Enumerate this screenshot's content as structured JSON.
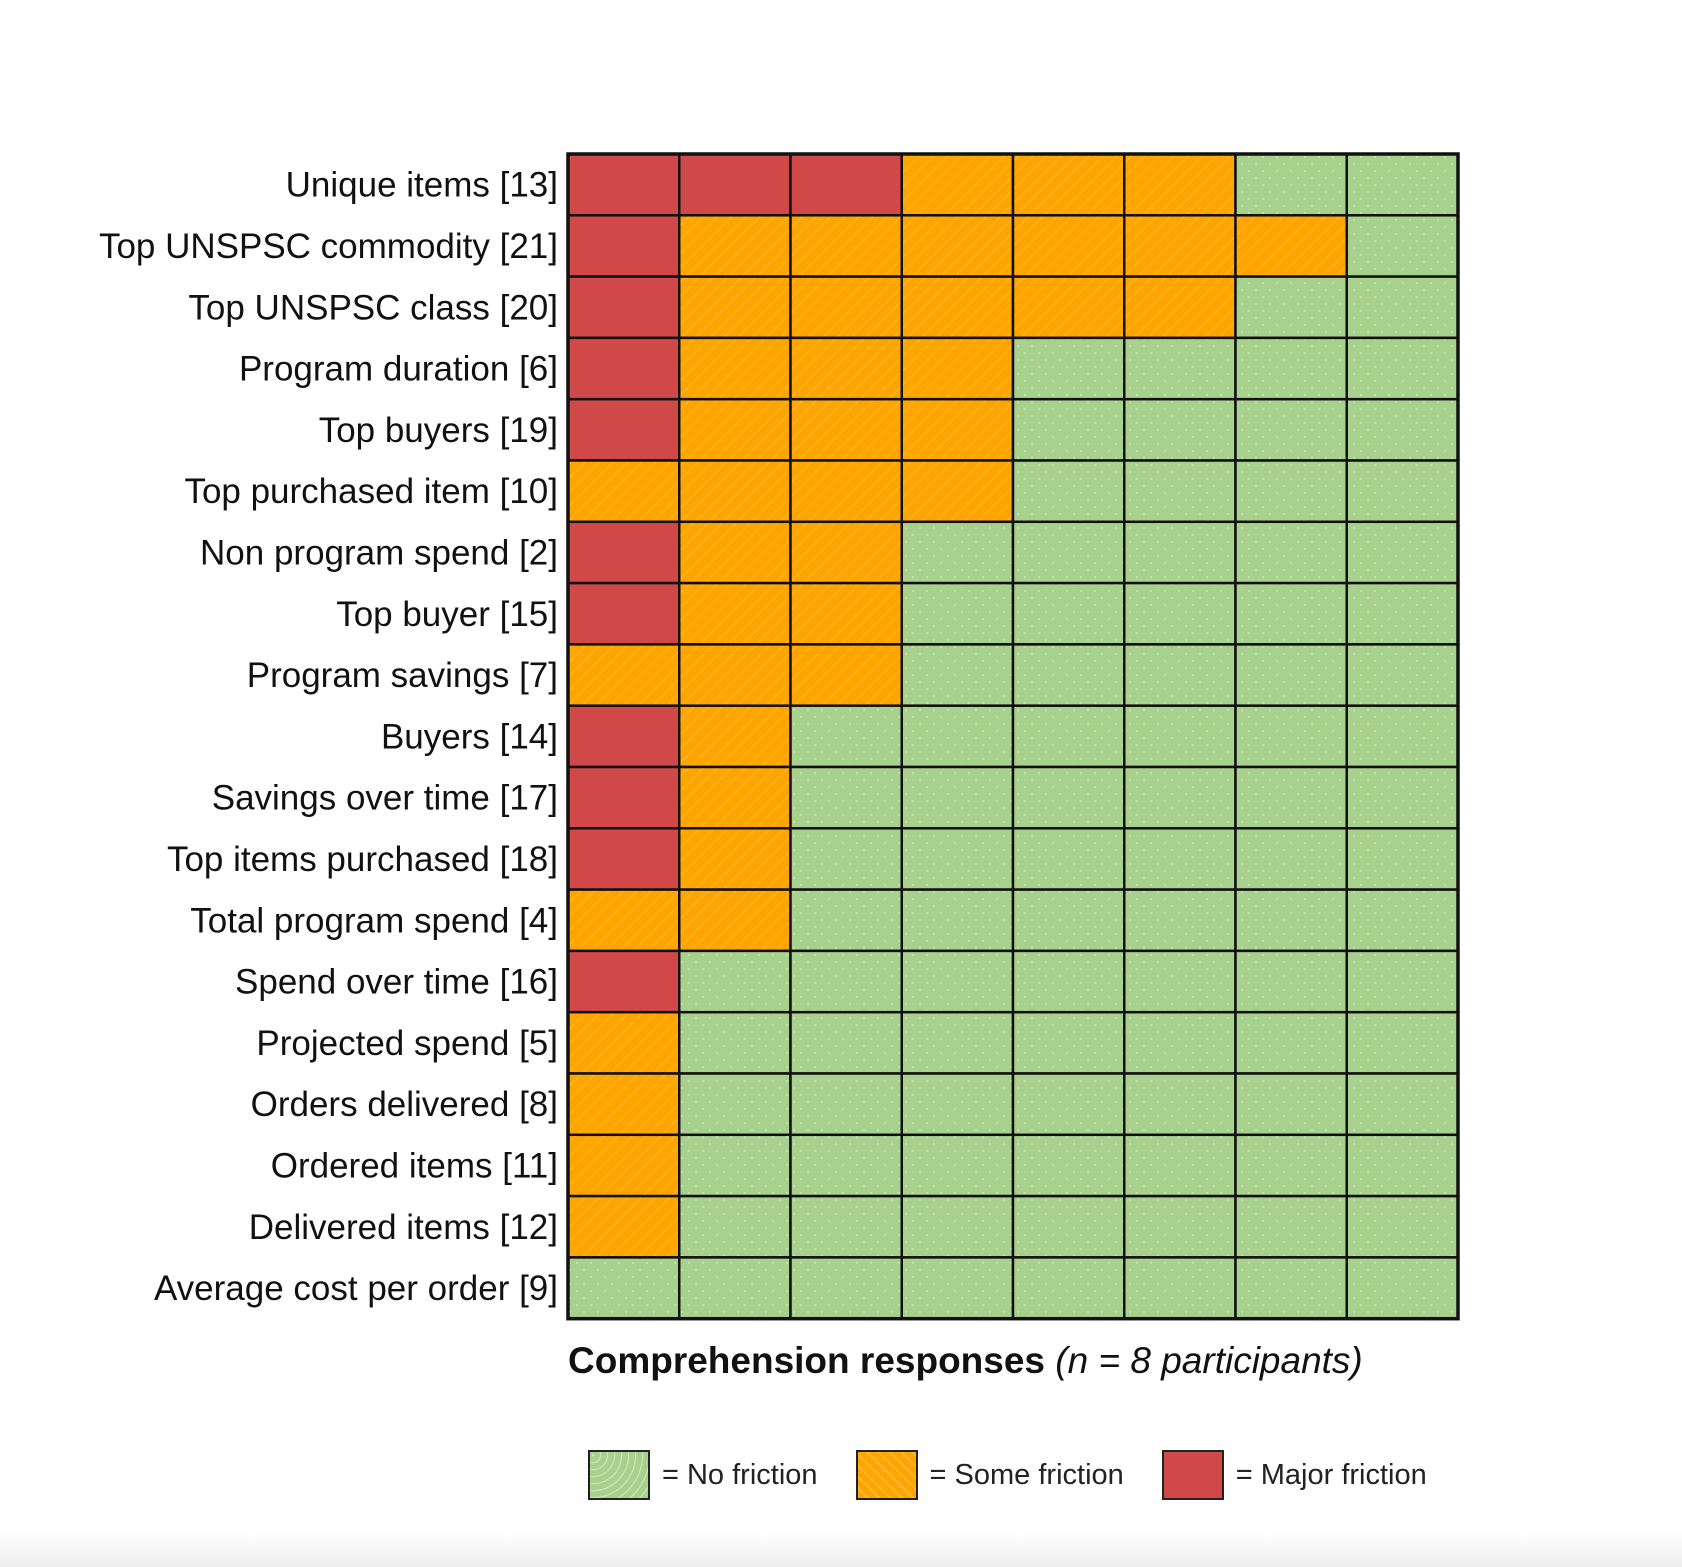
{
  "chart_data": {
    "type": "heatmap",
    "title": "",
    "xlabel_bold": "Comprehension responses",
    "xlabel_italic": "(n = 8 participants)",
    "ylabel": "",
    "rows": [
      "Unique items [13]",
      "Top UNSPSC commodity [21]",
      "Top UNSPSC class [20]",
      "Program duration [6]",
      "Top buyers [19]",
      "Top purchased item [10]",
      "Non program spend [2]",
      "Top buyer [15]",
      "Program savings [7]",
      "Buyers [14]",
      "Savings over time [17]",
      "Top items purchased [18]",
      "Total program spend [4]",
      "Spend over time [16]",
      "Projected spend [5]",
      "Orders delivered [8]",
      "Ordered items [11]",
      "Delivered items [12]",
      "Average cost per order [9]"
    ],
    "columns": 8,
    "levels": [
      "none",
      "some",
      "major"
    ],
    "values": [
      [
        "major",
        "major",
        "major",
        "some",
        "some",
        "some",
        "none",
        "none"
      ],
      [
        "major",
        "some",
        "some",
        "some",
        "some",
        "some",
        "some",
        "none"
      ],
      [
        "major",
        "some",
        "some",
        "some",
        "some",
        "some",
        "none",
        "none"
      ],
      [
        "major",
        "some",
        "some",
        "some",
        "none",
        "none",
        "none",
        "none"
      ],
      [
        "major",
        "some",
        "some",
        "some",
        "none",
        "none",
        "none",
        "none"
      ],
      [
        "some",
        "some",
        "some",
        "some",
        "none",
        "none",
        "none",
        "none"
      ],
      [
        "major",
        "some",
        "some",
        "none",
        "none",
        "none",
        "none",
        "none"
      ],
      [
        "major",
        "some",
        "some",
        "none",
        "none",
        "none",
        "none",
        "none"
      ],
      [
        "some",
        "some",
        "some",
        "none",
        "none",
        "none",
        "none",
        "none"
      ],
      [
        "major",
        "some",
        "none",
        "none",
        "none",
        "none",
        "none",
        "none"
      ],
      [
        "major",
        "some",
        "none",
        "none",
        "none",
        "none",
        "none",
        "none"
      ],
      [
        "major",
        "some",
        "none",
        "none",
        "none",
        "none",
        "none",
        "none"
      ],
      [
        "some",
        "some",
        "none",
        "none",
        "none",
        "none",
        "none",
        "none"
      ],
      [
        "major",
        "none",
        "none",
        "none",
        "none",
        "none",
        "none",
        "none"
      ],
      [
        "some",
        "none",
        "none",
        "none",
        "none",
        "none",
        "none",
        "none"
      ],
      [
        "some",
        "none",
        "none",
        "none",
        "none",
        "none",
        "none",
        "none"
      ],
      [
        "some",
        "none",
        "none",
        "none",
        "none",
        "none",
        "none",
        "none"
      ],
      [
        "some",
        "none",
        "none",
        "none",
        "none",
        "none",
        "none",
        "none"
      ],
      [
        "none",
        "none",
        "none",
        "none",
        "none",
        "none",
        "none",
        "none"
      ]
    ],
    "legend": [
      {
        "key": "none",
        "label": "= No friction"
      },
      {
        "key": "some",
        "label": "= Some friction"
      },
      {
        "key": "major",
        "label": "= Major friction"
      }
    ],
    "colors": {
      "none": "#a9d18e",
      "some": "#ffa500",
      "major": "#d04848",
      "grid": "#111111"
    },
    "legend_placement": "bottom"
  }
}
